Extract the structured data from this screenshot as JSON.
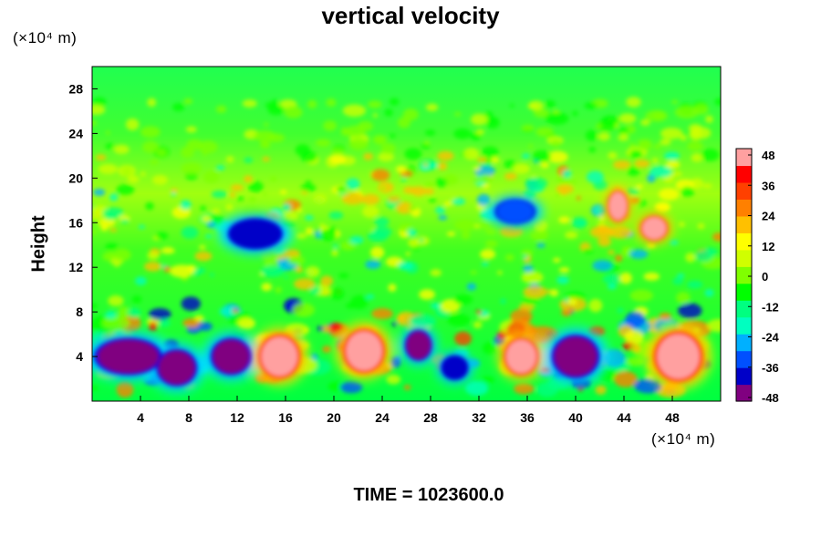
{
  "chart_data": {
    "type": "heatmap",
    "title": "vertical velocity",
    "xlabel": "",
    "ylabel": "Height",
    "x_unit": "(×10⁴ m)",
    "y_unit": "(×10⁴ m)",
    "footer": "TIME = 1023600.0",
    "xlim": [
      0,
      52
    ],
    "ylim": [
      0,
      30
    ],
    "x_ticks": [
      4,
      8,
      12,
      16,
      20,
      24,
      28,
      32,
      36,
      40,
      44,
      48
    ],
    "y_ticks": [
      4,
      8,
      12,
      16,
      20,
      24,
      28
    ],
    "colorbar": {
      "ticks": [
        48,
        36,
        24,
        12,
        0,
        -12,
        -24,
        -36,
        -48
      ],
      "range": [
        -48,
        48
      ],
      "colors_low_to_high": [
        "#800080",
        "#0000c8",
        "#0050ff",
        "#00b0ff",
        "#00ffc0",
        "#00ff80",
        "#00ff00",
        "#80ff00",
        "#d0ff00",
        "#ffff00",
        "#ffc000",
        "#ff8000",
        "#ff4000",
        "#ff0000",
        "#ffa0a0"
      ]
    },
    "features": [
      {
        "x": 3,
        "y": 4,
        "w": 5,
        "h": 3,
        "value": -48
      },
      {
        "x": 7,
        "y": 3,
        "w": 3,
        "h": 3,
        "value": -48
      },
      {
        "x": 11.5,
        "y": 4,
        "w": 3,
        "h": 3,
        "value": -48
      },
      {
        "x": 15.5,
        "y": 4,
        "w": 3,
        "h": 3.5,
        "value": 48
      },
      {
        "x": 22.5,
        "y": 4.5,
        "w": 3,
        "h": 3.5,
        "value": 48
      },
      {
        "x": 27,
        "y": 5,
        "w": 2,
        "h": 2.5,
        "value": -48
      },
      {
        "x": 35.5,
        "y": 4,
        "w": 2.5,
        "h": 3,
        "value": 48
      },
      {
        "x": 40,
        "y": 4,
        "w": 3.5,
        "h": 3.5,
        "value": -48
      },
      {
        "x": 48.5,
        "y": 4,
        "w": 3.5,
        "h": 4,
        "value": 48
      },
      {
        "x": 46.5,
        "y": 15.5,
        "w": 2,
        "h": 2,
        "value": 48
      },
      {
        "x": 43.5,
        "y": 17.5,
        "w": 1.5,
        "h": 2.5,
        "value": 48
      },
      {
        "x": 13.5,
        "y": 15,
        "w": 4,
        "h": 2.5,
        "value": -36
      },
      {
        "x": 35,
        "y": 17,
        "w": 3,
        "h": 2,
        "value": -30
      },
      {
        "x": 30,
        "y": 3,
        "w": 2,
        "h": 2,
        "value": -36
      }
    ]
  }
}
